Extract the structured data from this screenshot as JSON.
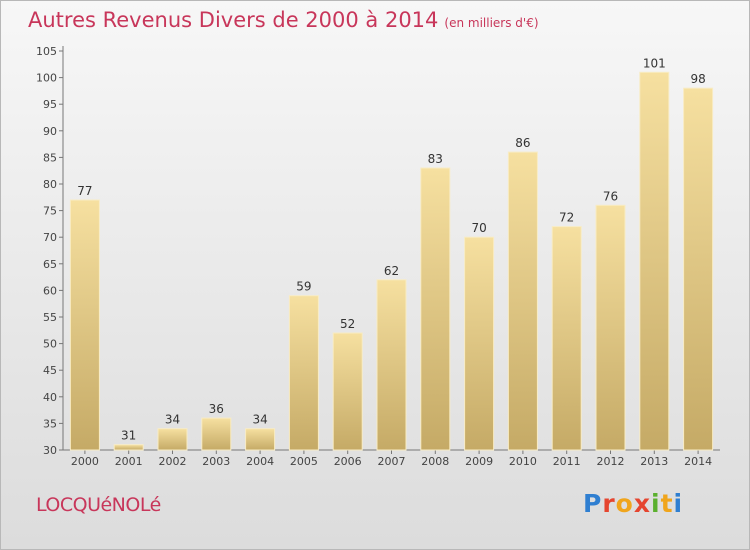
{
  "title": "Autres Revenus Divers de 2000 à 2014",
  "unit_note": "(en milliers d'€)",
  "commune": "LOCQUéNOLé",
  "logo_text": "Proxiti",
  "colors": {
    "title": "#c8365a",
    "bar_light": "#f4dc98",
    "bar_dark": "#c9ae6a"
  },
  "chart_data": {
    "type": "bar",
    "title": "Autres Revenus Divers de 2000 à 2014",
    "subtitle": "(en milliers d'€)",
    "xlabel": "",
    "ylabel": "",
    "categories": [
      "2000",
      "2001",
      "2002",
      "2003",
      "2004",
      "2005",
      "2006",
      "2007",
      "2008",
      "2009",
      "2010",
      "2011",
      "2012",
      "2013",
      "2014"
    ],
    "values": [
      77,
      31,
      34,
      36,
      34,
      59,
      52,
      62,
      83,
      70,
      86,
      72,
      76,
      101,
      98
    ],
    "ylim": [
      30,
      105
    ],
    "yticks": [
      30,
      35,
      40,
      45,
      50,
      55,
      60,
      65,
      70,
      75,
      80,
      85,
      90,
      95,
      100,
      105
    ],
    "grid": false
  }
}
